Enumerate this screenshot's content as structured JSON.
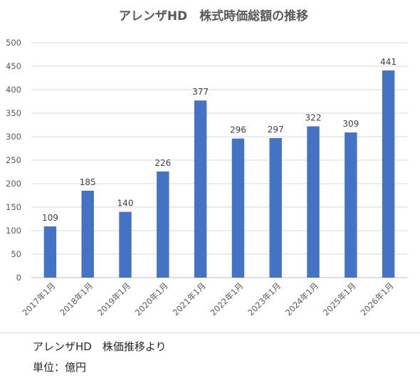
{
  "chart_data": {
    "type": "bar",
    "title": "アレンザHD　株式時価総額の推移",
    "categories": [
      "2017年1月",
      "2018年1月",
      "2019年1月",
      "2020年1月",
      "2021年1月",
      "2022年1月",
      "2023年1月",
      "2024年1月",
      "2025年1月",
      "2026年1月"
    ],
    "values": [
      109,
      185,
      140,
      226,
      377,
      296,
      297,
      322,
      309,
      441
    ],
    "ylim": [
      0,
      500
    ],
    "yticks": [
      0,
      50,
      100,
      150,
      200,
      250,
      300,
      350,
      400,
      450,
      500
    ],
    "grid": true,
    "bar_color": "#4472C4"
  },
  "notes": {
    "source": "アレンザHD　株価推移より",
    "unit": "単位：億円"
  }
}
